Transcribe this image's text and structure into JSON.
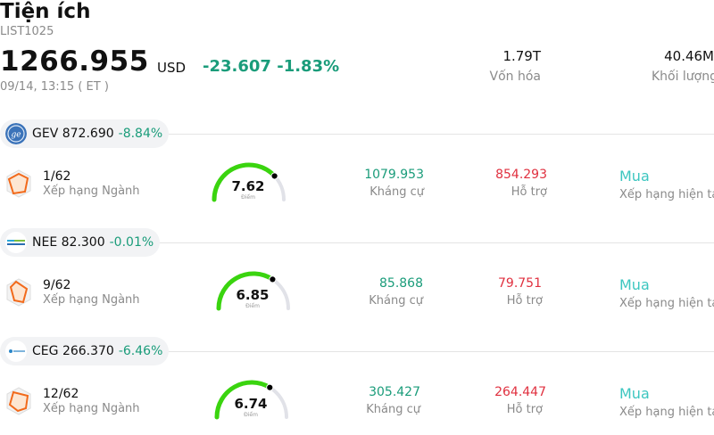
{
  "header": {
    "title": "Tiện ích",
    "code": "LIST1025",
    "price": "1266.955",
    "currency": "USD",
    "change": "-23.607",
    "change_pct": "-1.83%",
    "time": "09/14, 13:15 ( ET )"
  },
  "stats": [
    {
      "value": "1.79T",
      "label": "Vốn hóa"
    },
    {
      "value": "40.46M",
      "label": "Khối lượng"
    }
  ],
  "labels": {
    "rank": "Xếp hạng Ngành",
    "score": "Điểm",
    "resistance": "Kháng cự",
    "support": "Hỗ trợ",
    "rating": "Xếp hạng hiện tại"
  },
  "stocks": [
    {
      "symbol": "GEV",
      "price": "872.690",
      "pct": "-8.84%",
      "rank": "1/62",
      "score": "7.62",
      "score_fraction": 0.762,
      "resistance": "1079.953",
      "support": "854.293",
      "rating": "Mua"
    },
    {
      "symbol": "NEE",
      "price": "82.300",
      "pct": "-0.01%",
      "rank": "9/62",
      "score": "6.85",
      "score_fraction": 0.685,
      "resistance": "85.868",
      "support": "79.751",
      "rating": "Mua"
    },
    {
      "symbol": "CEG",
      "price": "266.370",
      "pct": "-6.46%",
      "rank": "12/62",
      "score": "6.74",
      "score_fraction": 0.674,
      "resistance": "305.427",
      "support": "264.447",
      "rating": "Mua"
    }
  ],
  "colors": {
    "positive": "#1a9c7a",
    "negative": "#e0303f",
    "gauge": "#3ad40f",
    "rating": "#3cc6c0"
  }
}
